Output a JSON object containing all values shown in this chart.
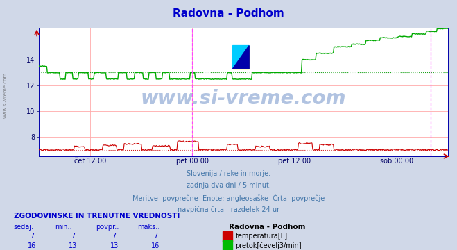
{
  "title": "Radovna - Podhom",
  "title_color": "#0000cc",
  "bg_color": "#d0d8e8",
  "plot_bg_color": "#ffffff",
  "figsize": [
    6.59,
    3.6
  ],
  "dpi": 100,
  "ylim": [
    6.5,
    16.5
  ],
  "yticks": [
    8,
    10,
    12,
    14
  ],
  "xlabel_ticks": [
    "čet 12:00",
    "pet 00:00",
    "pet 12:00",
    "sob 00:00"
  ],
  "xlabel_tick_positions": [
    0.125,
    0.375,
    0.625,
    0.875
  ],
  "red_avg": 7.0,
  "green_avg": 13.0,
  "vline_positions": [
    0.375,
    0.958
  ],
  "subtitle_lines": [
    "Slovenija / reke in morje.",
    "zadnja dva dni / 5 minut.",
    "Meritve: povprečne  Enote: angleosaške  Črta: povprečje",
    "navpična črta - razdelek 24 ur"
  ],
  "subtitle_color": "#4477aa",
  "table_header": "ZGODOVINSKE IN TRENUTNE VREDNOSTI",
  "table_cols": [
    "sedaj:",
    "min.:",
    "povpr.:",
    "maks.:"
  ],
  "table_row1": [
    "7",
    "7",
    "7",
    "7"
  ],
  "table_row2": [
    "16",
    "13",
    "13",
    "16"
  ],
  "legend_label1": "temperatura[F]",
  "legend_color1": "#cc0000",
  "legend_label2": "pretok[čevelj3/min]",
  "legend_color2": "#00bb00",
  "legend_station": "Radovna - Podhom",
  "watermark_text": "www.si-vreme.com",
  "watermark_color": "#2255aa",
  "watermark_alpha": 0.35,
  "red_line_color": "#cc0000",
  "green_line_color": "#00aa00",
  "grid_color": "#ffaaaa",
  "avg_line_color_red": "#cc0000",
  "avg_line_color_green": "#009900",
  "vline_color": "#ff44ff",
  "spine_color": "#0000aa",
  "tick_color": "#000066",
  "left_label_color": "#666666"
}
